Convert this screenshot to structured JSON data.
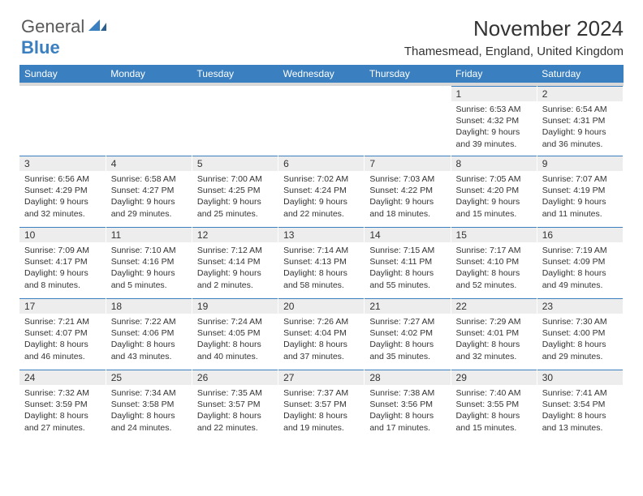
{
  "logo": {
    "part1": "General",
    "part2": "Blue"
  },
  "title": "November 2024",
  "location": "Thamesmead, England, United Kingdom",
  "colors": {
    "header_bg": "#3a7fbf",
    "header_text": "#ffffff",
    "subheader_bg": "#d9d9d9",
    "daynum_bg": "#ededed",
    "text": "#333333",
    "row_border": "#3a7fbf"
  },
  "fonts": {
    "title_size": 26,
    "location_size": 15,
    "weekday_size": 12,
    "daynum_size": 12,
    "info_size": 10.5
  },
  "weekdays": [
    "Sunday",
    "Monday",
    "Tuesday",
    "Wednesday",
    "Thursday",
    "Friday",
    "Saturday"
  ],
  "weeks": [
    [
      null,
      null,
      null,
      null,
      null,
      {
        "n": "1",
        "sr": "6:53 AM",
        "ss": "4:32 PM",
        "dl": "9 hours and 39 minutes."
      },
      {
        "n": "2",
        "sr": "6:54 AM",
        "ss": "4:31 PM",
        "dl": "9 hours and 36 minutes."
      }
    ],
    [
      {
        "n": "3",
        "sr": "6:56 AM",
        "ss": "4:29 PM",
        "dl": "9 hours and 32 minutes."
      },
      {
        "n": "4",
        "sr": "6:58 AM",
        "ss": "4:27 PM",
        "dl": "9 hours and 29 minutes."
      },
      {
        "n": "5",
        "sr": "7:00 AM",
        "ss": "4:25 PM",
        "dl": "9 hours and 25 minutes."
      },
      {
        "n": "6",
        "sr": "7:02 AM",
        "ss": "4:24 PM",
        "dl": "9 hours and 22 minutes."
      },
      {
        "n": "7",
        "sr": "7:03 AM",
        "ss": "4:22 PM",
        "dl": "9 hours and 18 minutes."
      },
      {
        "n": "8",
        "sr": "7:05 AM",
        "ss": "4:20 PM",
        "dl": "9 hours and 15 minutes."
      },
      {
        "n": "9",
        "sr": "7:07 AM",
        "ss": "4:19 PM",
        "dl": "9 hours and 11 minutes."
      }
    ],
    [
      {
        "n": "10",
        "sr": "7:09 AM",
        "ss": "4:17 PM",
        "dl": "9 hours and 8 minutes."
      },
      {
        "n": "11",
        "sr": "7:10 AM",
        "ss": "4:16 PM",
        "dl": "9 hours and 5 minutes."
      },
      {
        "n": "12",
        "sr": "7:12 AM",
        "ss": "4:14 PM",
        "dl": "9 hours and 2 minutes."
      },
      {
        "n": "13",
        "sr": "7:14 AM",
        "ss": "4:13 PM",
        "dl": "8 hours and 58 minutes."
      },
      {
        "n": "14",
        "sr": "7:15 AM",
        "ss": "4:11 PM",
        "dl": "8 hours and 55 minutes."
      },
      {
        "n": "15",
        "sr": "7:17 AM",
        "ss": "4:10 PM",
        "dl": "8 hours and 52 minutes."
      },
      {
        "n": "16",
        "sr": "7:19 AM",
        "ss": "4:09 PM",
        "dl": "8 hours and 49 minutes."
      }
    ],
    [
      {
        "n": "17",
        "sr": "7:21 AM",
        "ss": "4:07 PM",
        "dl": "8 hours and 46 minutes."
      },
      {
        "n": "18",
        "sr": "7:22 AM",
        "ss": "4:06 PM",
        "dl": "8 hours and 43 minutes."
      },
      {
        "n": "19",
        "sr": "7:24 AM",
        "ss": "4:05 PM",
        "dl": "8 hours and 40 minutes."
      },
      {
        "n": "20",
        "sr": "7:26 AM",
        "ss": "4:04 PM",
        "dl": "8 hours and 37 minutes."
      },
      {
        "n": "21",
        "sr": "7:27 AM",
        "ss": "4:02 PM",
        "dl": "8 hours and 35 minutes."
      },
      {
        "n": "22",
        "sr": "7:29 AM",
        "ss": "4:01 PM",
        "dl": "8 hours and 32 minutes."
      },
      {
        "n": "23",
        "sr": "7:30 AM",
        "ss": "4:00 PM",
        "dl": "8 hours and 29 minutes."
      }
    ],
    [
      {
        "n": "24",
        "sr": "7:32 AM",
        "ss": "3:59 PM",
        "dl": "8 hours and 27 minutes."
      },
      {
        "n": "25",
        "sr": "7:34 AM",
        "ss": "3:58 PM",
        "dl": "8 hours and 24 minutes."
      },
      {
        "n": "26",
        "sr": "7:35 AM",
        "ss": "3:57 PM",
        "dl": "8 hours and 22 minutes."
      },
      {
        "n": "27",
        "sr": "7:37 AM",
        "ss": "3:57 PM",
        "dl": "8 hours and 19 minutes."
      },
      {
        "n": "28",
        "sr": "7:38 AM",
        "ss": "3:56 PM",
        "dl": "8 hours and 17 minutes."
      },
      {
        "n": "29",
        "sr": "7:40 AM",
        "ss": "3:55 PM",
        "dl": "8 hours and 15 minutes."
      },
      {
        "n": "30",
        "sr": "7:41 AM",
        "ss": "3:54 PM",
        "dl": "8 hours and 13 minutes."
      }
    ]
  ],
  "labels": {
    "sunrise": "Sunrise:",
    "sunset": "Sunset:",
    "daylight": "Daylight:"
  }
}
